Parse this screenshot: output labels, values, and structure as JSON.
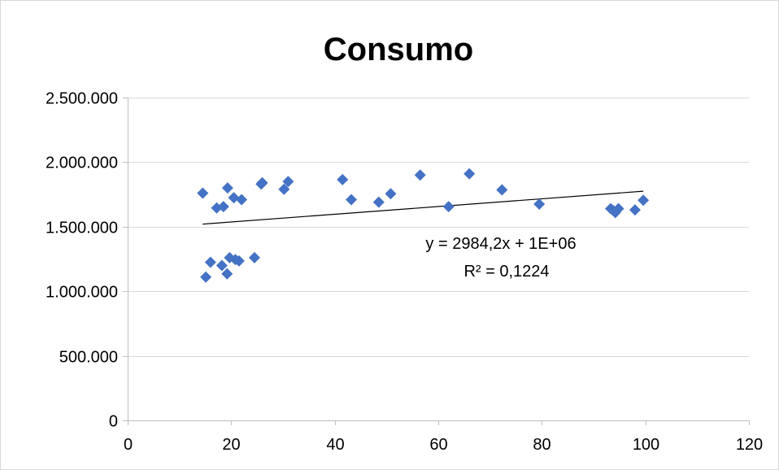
{
  "chart_data": {
    "type": "scatter",
    "title": "Consumo",
    "xlabel": "",
    "ylabel": "",
    "xlim": [
      0,
      120
    ],
    "ylim": [
      0,
      2500000
    ],
    "x_ticks": [
      0,
      20,
      40,
      60,
      80,
      100,
      120
    ],
    "y_ticks": [
      0,
      500000,
      1000000,
      1500000,
      2000000,
      2500000
    ],
    "x_tick_labels": [
      "0",
      "20",
      "40",
      "60",
      "80",
      "100",
      "120"
    ],
    "y_tick_labels": [
      "0",
      "500.000",
      "1.000.000",
      "1.500.000",
      "2.000.000",
      "2.500.000"
    ],
    "grid": "horizontal",
    "marker": "diamond",
    "marker_color": "#4472c4",
    "series": [
      {
        "points": [
          [
            14.5,
            1760000
          ],
          [
            15.1,
            1110000
          ],
          [
            16.0,
            1225000
          ],
          [
            17.2,
            1645000
          ],
          [
            18.2,
            1200000
          ],
          [
            18.5,
            1655000
          ],
          [
            19.2,
            1135000
          ],
          [
            19.3,
            1800000
          ],
          [
            19.7,
            1260000
          ],
          [
            20.5,
            1725000
          ],
          [
            20.8,
            1245000
          ],
          [
            21.5,
            1235000
          ],
          [
            22.0,
            1710000
          ],
          [
            24.5,
            1260000
          ],
          [
            25.8,
            1830000
          ],
          [
            26.0,
            1840000
          ],
          [
            30.2,
            1790000
          ],
          [
            31.0,
            1850000
          ],
          [
            41.5,
            1865000
          ],
          [
            43.2,
            1710000
          ],
          [
            48.5,
            1690000
          ],
          [
            50.8,
            1755000
          ],
          [
            56.5,
            1900000
          ],
          [
            62.0,
            1655000
          ],
          [
            66.0,
            1910000
          ],
          [
            72.3,
            1785000
          ],
          [
            79.5,
            1675000
          ],
          [
            93.3,
            1640000
          ],
          [
            93.8,
            1625000
          ],
          [
            94.2,
            1610000
          ],
          [
            94.8,
            1640000
          ],
          [
            98.0,
            1630000
          ],
          [
            99.6,
            1705000
          ]
        ]
      }
    ],
    "trendline": {
      "type": "linear",
      "x_range": [
        14.5,
        99.6
      ],
      "y_values": [
        1520000,
        1775000
      ],
      "color": "#000000",
      "equation": "y = 2984,2x + 1E+06",
      "r_squared": "R² = 0,1224"
    }
  }
}
